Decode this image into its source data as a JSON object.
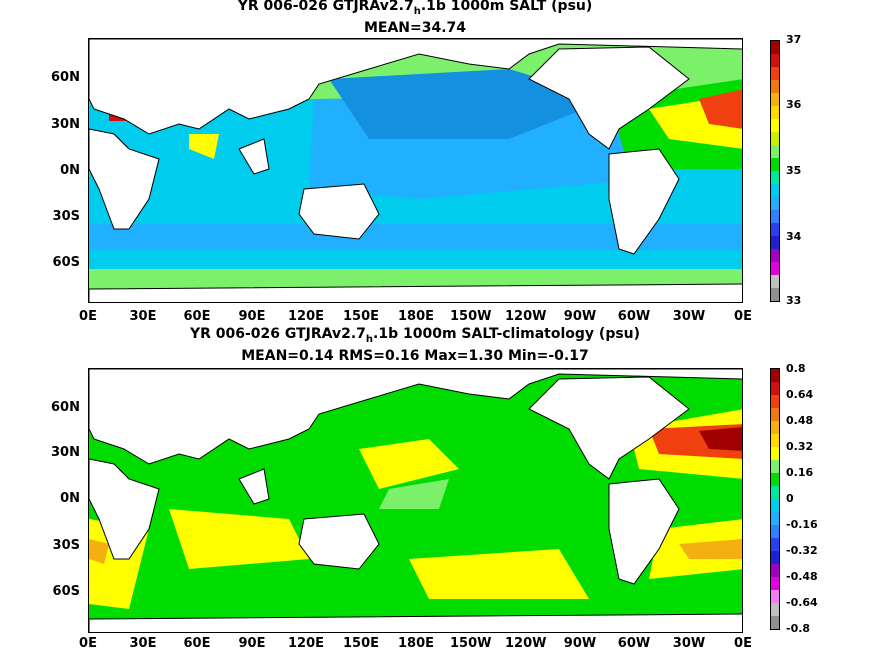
{
  "panel1": {
    "title_pre": "YR 006-026 GTJRAv2.7",
    "title_sub": "h",
    "title_post": ".1b 1000m SALT (psu)",
    "stats": "MEAN=34.74",
    "lat_labels": [
      "60N",
      "30N",
      "0N",
      "30S",
      "60S"
    ],
    "lon_labels": [
      "0E",
      "30E",
      "60E",
      "90E",
      "120E",
      "150E",
      "180E",
      "150W",
      "120W",
      "90W",
      "60W",
      "30W",
      "0E"
    ],
    "colorbar_ticks": [
      "37",
      "36",
      "35",
      "34",
      "33"
    ],
    "colorbar_colors": [
      "#a00000",
      "#d01010",
      "#f04010",
      "#f07a10",
      "#f4b010",
      "#ffd800",
      "#ffff00",
      "#c8f000",
      "#7cf06a",
      "#00dc00",
      "#00e8a0",
      "#00ccee",
      "#20b0ff",
      "#3080ff",
      "#2a40f0",
      "#2020d0",
      "#a000c0",
      "#e000e0",
      "#c0c0c0",
      "#909090"
    ]
  },
  "panel2": {
    "title_pre": "YR 006-026 GTJRAv2.7",
    "title_sub": "h",
    "title_post": ".1b 1000m SALT-climatology (psu)",
    "stats": "MEAN=0.14   RMS=0.16   Max=1.30   Min=-0.17",
    "lat_labels": [
      "60N",
      "30N",
      "0N",
      "30S",
      "60S"
    ],
    "lon_labels": [
      "0E",
      "30E",
      "60E",
      "90E",
      "120E",
      "150E",
      "180E",
      "150W",
      "120W",
      "90W",
      "60W",
      "30W",
      "0E"
    ],
    "colorbar_ticks": [
      "0.8",
      "0.64",
      "0.48",
      "0.32",
      "0.16",
      "0",
      "-0.16",
      "-0.32",
      "-0.48",
      "-0.64",
      "-0.8"
    ],
    "colorbar_colors": [
      "#a00000",
      "#d01010",
      "#f04010",
      "#f07a10",
      "#f4b010",
      "#ffd800",
      "#ffff00",
      "#7cf06a",
      "#00dc00",
      "#00e8a0",
      "#00ccee",
      "#20b0ff",
      "#3080ff",
      "#2a40f0",
      "#2020d0",
      "#a000c0",
      "#e000e0",
      "#f080f0",
      "#c0c0c0",
      "#909090"
    ]
  },
  "colors": {
    "land": "#ffffff",
    "coast": "#000000",
    "salt_deep_blue": "#20b0ff",
    "salt_cyan": "#00ccee",
    "salt_lightblue": "#60c8ff",
    "salt_green": "#00dc00",
    "salt_lightgreen": "#7cf06a",
    "salt_yellow": "#ffff00",
    "salt_red": "#d01010"
  }
}
